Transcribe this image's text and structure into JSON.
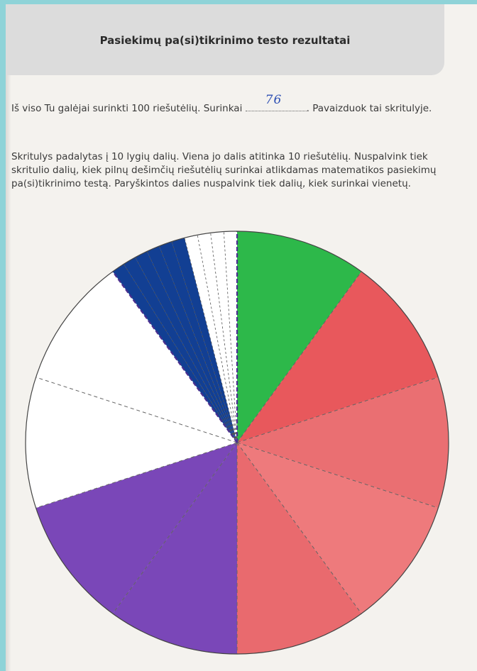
{
  "header": {
    "title": "Pasiekimų pa(si)tikrinimo testo rezultatai"
  },
  "paragraph1": {
    "before_answer": "Iš viso Tu galėjai surinkti 100 riešutėlių. Surinkai",
    "handwritten_answer": "76",
    "after_answer": ". Pavaizduok tai skritulyje."
  },
  "paragraph2": {
    "text": "Skritulys padalytas į 10 lygių dalių. Viena jo dalis atitinka 10 riešutėlių. Nuspalvink tiek skritulio dalių, kiek pilnų dešimčių riešutėlių surinkai atlikdamas matematikos pasiekimų pa(si)tikrinimo testą. Paryškintos dalies nuspalvink tiek dalių, kiek surinkai vienetų."
  },
  "circle": {
    "total_parts": 10,
    "sectors": [
      {
        "color": "#2db84a"
      },
      {
        "color": "#e8585c"
      },
      {
        "color": "#ea6f72"
      },
      {
        "color": "#ee7a7c"
      },
      {
        "color": "#e96a6e"
      },
      {
        "color": "#7a47b8"
      },
      {
        "color": "#7a47b8"
      },
      {
        "color": "#ffffff"
      },
      {
        "color": "#ffffff"
      },
      {
        "color": "#ffffff"
      }
    ],
    "emphasized_part_units": {
      "total_subparts": 10,
      "colored_subparts": 6,
      "color": "#123f93"
    }
  }
}
